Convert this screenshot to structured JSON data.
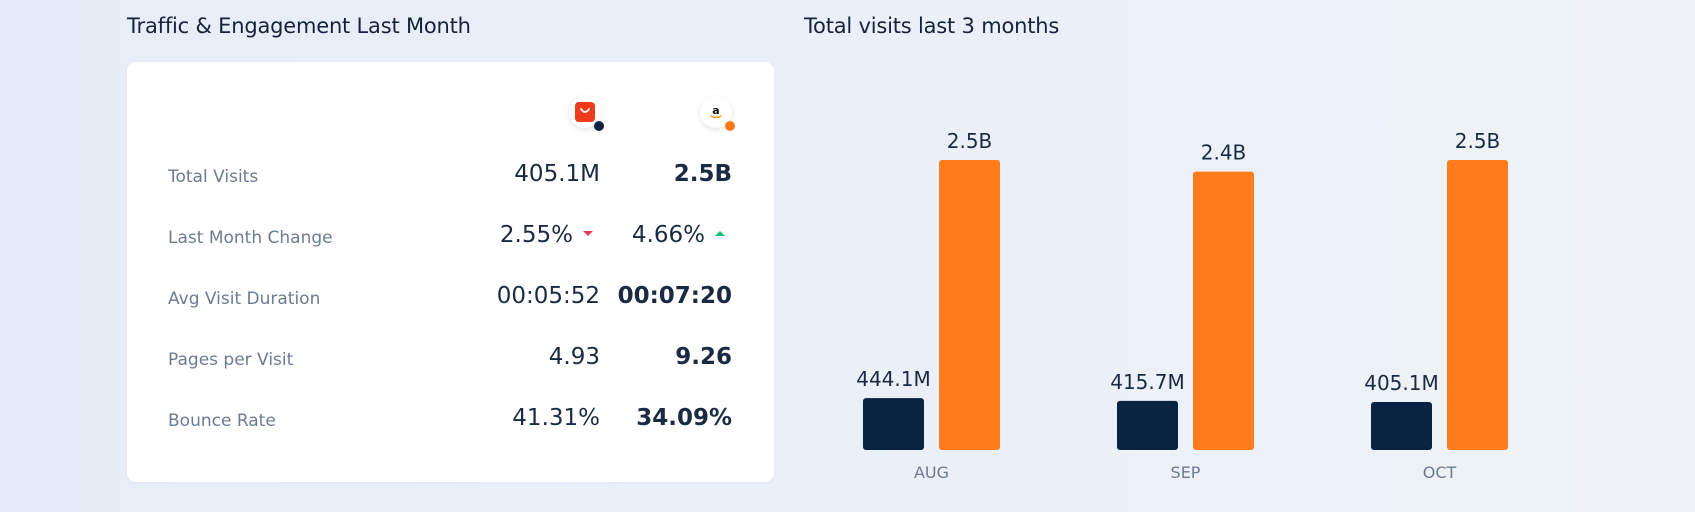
{
  "left_panel": {
    "title": "Traffic & Engagement Last Month",
    "sites": [
      {
        "logo": "aliexpress-logo-icon",
        "dot_color": "#0b2342"
      },
      {
        "logo": "amazon-logo-icon",
        "dot_color": "#ff7b1c"
      }
    ],
    "rows": [
      {
        "label": "Total Visits",
        "a": "405.1M",
        "b": "2.5B"
      },
      {
        "label": "Last Month Change",
        "a": "2.55%",
        "b": "4.66%",
        "a_trend": "down",
        "b_trend": "up"
      },
      {
        "label": "Avg Visit Duration",
        "a": "00:05:52",
        "b": "00:07:20"
      },
      {
        "label": "Pages per Visit",
        "a": "4.93",
        "b": "9.26"
      },
      {
        "label": "Bounce Rate",
        "a": "41.31%",
        "b": "34.09%"
      }
    ]
  },
  "chart_data": {
    "type": "bar",
    "title": "Total visits last 3 months",
    "categories": [
      "AUG",
      "SEP",
      "OCT"
    ],
    "series": [
      {
        "values": [
          444.1,
          415.7,
          405.1
        ],
        "labels": [
          "444.1M",
          "415.7M",
          "405.1M"
        ],
        "color": "#0b2342"
      },
      {
        "values": [
          2500,
          2400,
          2500
        ],
        "labels": [
          "2.5B",
          "2.4B",
          "2.5B"
        ],
        "color": "#ff7b1c"
      }
    ],
    "unit": "M",
    "grid": false,
    "legend": "none"
  }
}
